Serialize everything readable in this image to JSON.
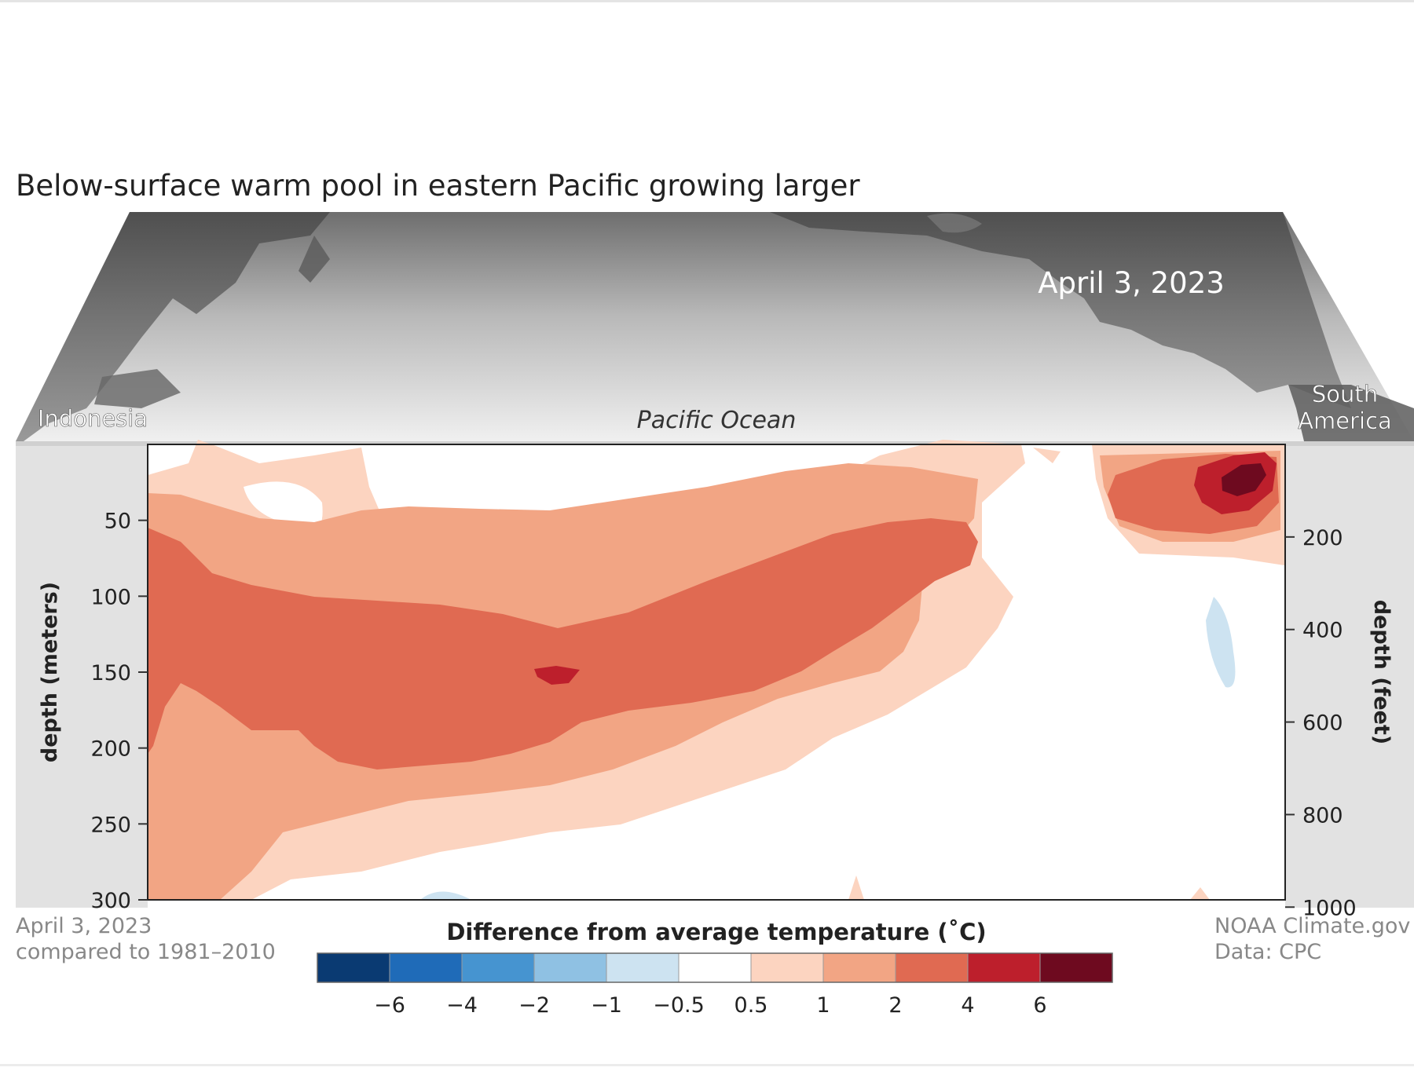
{
  "chart_data": {
    "type": "heatmap",
    "title": "Below-surface warm pool in eastern Pacific growing larger",
    "date_label": "April 3, 2023",
    "map_labels": {
      "west": "Indonesia",
      "center": "Pacific Ocean",
      "east_line1": "South",
      "east_line2": "America"
    },
    "ylabel": "depth (meters)",
    "ylabel_right": "depth (feet)",
    "y_ticks": [
      50,
      100,
      150,
      200,
      250,
      300
    ],
    "y_ticks_right": [
      200,
      400,
      600,
      800,
      1000
    ],
    "ylim": [
      0,
      300
    ],
    "colorbar": {
      "title": "Difference from average temperature (˚C)",
      "colors": [
        "#0a3a72",
        "#1f6bb8",
        "#4694d0",
        "#8fc1e3",
        "#cde3f1",
        "#ffffff",
        "#fcd4c0",
        "#f2a584",
        "#e06a52",
        "#bd1f2c",
        "#6e0a1f"
      ],
      "tick_labels": [
        "−6",
        "−4",
        "−2",
        "−1",
        "−0.5",
        "0.5",
        "1",
        "2",
        "4",
        "6"
      ]
    },
    "footnote_left": [
      "April 3, 2023",
      "compared to 1981–2010"
    ],
    "footnote_right": [
      "NOAA Climate.gov",
      "Data: CPC"
    ]
  }
}
